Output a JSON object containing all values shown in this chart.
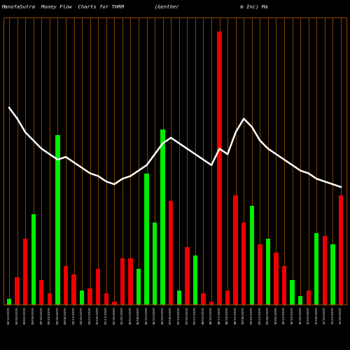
{
  "title": "ManofaSutra  Money Flow  Charts for THRM          (Genther                    m Inc) Ma",
  "bg_color": "#000000",
  "bar_color_up": "#00ee00",
  "bar_color_down": "#ee0000",
  "grid_color": "#8B4500",
  "line_color": "#ffffff",
  "n_bars": 42,
  "bar_values": [
    2,
    10,
    24,
    33,
    9,
    4,
    62,
    14,
    11,
    5,
    6,
    13,
    4,
    1,
    17,
    17,
    13,
    48,
    30,
    64,
    38,
    5,
    21,
    18,
    4,
    1,
    100,
    5,
    40,
    30,
    36,
    22,
    24,
    19,
    14,
    9,
    3,
    5,
    26,
    25,
    22,
    40
  ],
  "bar_colors": [
    "g",
    "r",
    "r",
    "g",
    "r",
    "r",
    "g",
    "r",
    "r",
    "g",
    "r",
    "r",
    "r",
    "r",
    "r",
    "r",
    "g",
    "g",
    "g",
    "g",
    "r",
    "g",
    "r",
    "g",
    "r",
    "r",
    "r",
    "r",
    "r",
    "r",
    "g",
    "r",
    "g",
    "r",
    "r",
    "g",
    "g",
    "r",
    "g",
    "r",
    "g",
    "r"
  ],
  "line_values": [
    72,
    68,
    63,
    60,
    57,
    55,
    53,
    54,
    52,
    50,
    48,
    47,
    45,
    44,
    46,
    47,
    49,
    51,
    55,
    59,
    61,
    59,
    57,
    55,
    53,
    51,
    57,
    55,
    63,
    68,
    65,
    60,
    57,
    55,
    53,
    51,
    49,
    48,
    46,
    45,
    44,
    43
  ],
  "line_scale_min": 0,
  "line_scale_max": 100,
  "ylim_max": 105,
  "xlabels": [
    "02/13/2009",
    "02/20/2009",
    "03/02/2009",
    "03/09/2009",
    "03/16/2009",
    "03/23/2009",
    "03/30/2009",
    "04/06/2009",
    "04/13/2009",
    "04/20/2009",
    "04/27/2009",
    "05/04/2009",
    "05/11/2009",
    "05/18/2009",
    "05/26/2009",
    "06/01/2009",
    "06/08/2009",
    "06/15/2009",
    "06/22/2009",
    "06/29/2009",
    "07/06/2009",
    "07/13/2009",
    "07/20/2009",
    "07/27/2009",
    "08/03/2009",
    "08/10/2009",
    "08/17/2009",
    "08/24/2009",
    "08/31/2009",
    "09/08/2009",
    "09/14/2009",
    "09/21/2009",
    "09/28/2009",
    "10/05/2009",
    "10/12/2009",
    "10/19/2009",
    "10/26/2009",
    "11/02/2009",
    "11/09/2009",
    "11/16/2009",
    "11/23/2009",
    "11/30/2009"
  ]
}
